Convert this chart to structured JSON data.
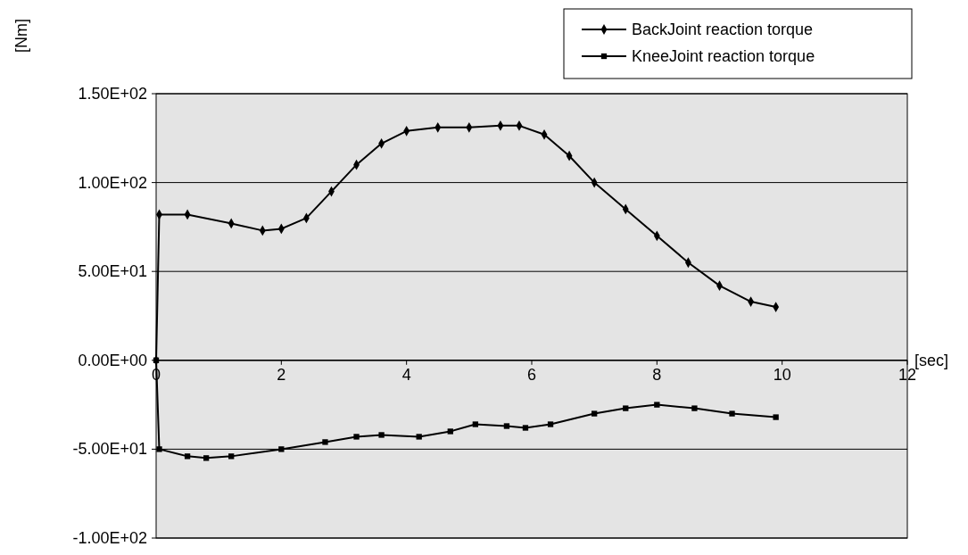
{
  "chart_data": {
    "type": "line",
    "xlabel": "[sec]",
    "ylabel": "[Nm]",
    "xlim": [
      0,
      12
    ],
    "xticks": [
      0,
      2,
      4,
      6,
      8,
      10,
      12
    ],
    "ylim": [
      -100,
      150
    ],
    "yticks": [
      {
        "value": -100,
        "label": "-1.00E+02"
      },
      {
        "value": -50,
        "label": "-5.00E+01"
      },
      {
        "value": 0,
        "label": "0.00E+00"
      },
      {
        "value": 50,
        "label": "5.00E+01"
      },
      {
        "value": 100,
        "label": "1.00E+02"
      },
      {
        "value": 150,
        "label": "1.50E+02"
      }
    ],
    "grid": "y",
    "legend": "top right",
    "series": [
      {
        "name": "BackJoint reaction torque",
        "color": "#000000",
        "marker": "diamond",
        "x": [
          0,
          0.05,
          0.5,
          1.2,
          1.7,
          2.0,
          2.4,
          2.8,
          3.2,
          3.6,
          4.0,
          4.5,
          5.0,
          5.5,
          5.8,
          6.2,
          6.6,
          7.0,
          7.5,
          8.0,
          8.5,
          9.0,
          9.5,
          9.9
        ],
        "values": [
          0,
          82,
          82,
          77,
          73,
          74,
          80,
          95,
          110,
          122,
          129,
          131,
          131,
          132,
          132,
          127,
          115,
          100,
          85,
          70,
          55,
          42,
          33,
          30
        ]
      },
      {
        "name": "KneeJoint reaction torque",
        "color": "#000000",
        "marker": "square",
        "x": [
          0,
          0.05,
          0.5,
          0.8,
          1.2,
          2.0,
          2.7,
          3.2,
          3.6,
          4.2,
          4.7,
          5.1,
          5.6,
          5.9,
          6.3,
          7.0,
          7.5,
          8.0,
          8.6,
          9.2,
          9.9
        ],
        "values": [
          0,
          -50,
          -54,
          -55,
          -54,
          -50,
          -46,
          -43,
          -42,
          -43,
          -40,
          -36,
          -37,
          -38,
          -36,
          -30,
          -27,
          -25,
          -27,
          -30,
          -32
        ]
      }
    ]
  }
}
